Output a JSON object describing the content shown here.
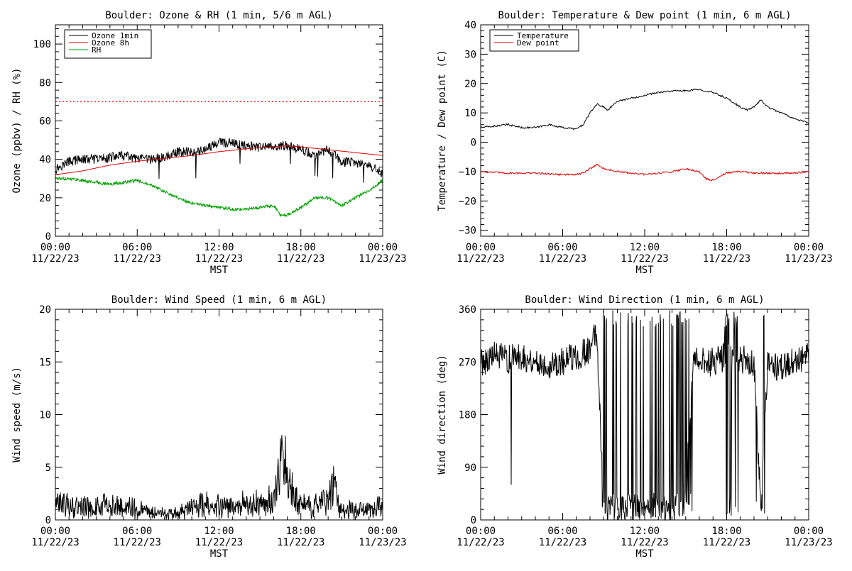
{
  "chart_data": [
    {
      "type": "line",
      "title": "Boulder: Ozone & RH (1 min, 5/6 m AGL)",
      "xlabel": "MST",
      "ylabel": "Ozone (ppbv) / RH (%)",
      "x_ticks": [
        {
          "time": "00:00",
          "date": "11/22/23"
        },
        {
          "time": "06:00",
          "date": "11/22/23"
        },
        {
          "time": "12:00",
          "date": "11/22/23"
        },
        {
          "time": "18:00",
          "date": "11/22/23"
        },
        {
          "time": "00:00",
          "date": "11/23/23"
        }
      ],
      "xlim_hours": [
        0,
        24
      ],
      "ylim": [
        0,
        110
      ],
      "y_ticks": [
        "0",
        "20",
        "40",
        "60",
        "80",
        "100"
      ],
      "y_tick_values": [
        0,
        20,
        40,
        60,
        80,
        100
      ],
      "legend": [
        "Ozone 1min",
        "Ozone 8h",
        "RH"
      ],
      "legend_position": "top-left",
      "reference_line": {
        "value": 70,
        "color": "#ff0000",
        "style": "dotted"
      },
      "series": [
        {
          "name": "Ozone 1min",
          "color": "#000000",
          "noisy": true,
          "hours": [
            0,
            1,
            2,
            3,
            4,
            5,
            6,
            7,
            8,
            9,
            10,
            11,
            12,
            13,
            14,
            15,
            16,
            17,
            18,
            19,
            20,
            21,
            22,
            23,
            24
          ],
          "values": [
            35,
            39,
            40,
            40,
            41,
            42,
            40,
            40,
            41,
            44,
            44,
            45,
            49,
            48,
            47,
            46,
            47,
            47,
            45,
            42,
            45,
            39,
            38,
            37,
            32
          ]
        },
        {
          "name": "Ozone 8h",
          "color": "#e00000",
          "noisy": false,
          "hours": [
            0,
            2,
            4,
            6,
            8,
            10,
            12,
            14,
            16,
            17,
            18,
            20,
            22,
            24
          ],
          "values": [
            32,
            34,
            37,
            39,
            40.5,
            42,
            44,
            45.5,
            46.5,
            47,
            46.5,
            45,
            43.5,
            42
          ]
        },
        {
          "name": "RH",
          "color": "#00a000",
          "noisy": true,
          "hours": [
            0,
            1,
            2,
            3,
            4,
            5,
            6,
            7,
            8,
            9,
            10,
            11,
            12,
            13,
            14,
            15,
            16,
            16.5,
            17,
            18,
            19,
            20,
            21,
            22,
            23,
            24
          ],
          "values": [
            30,
            30,
            29,
            28,
            27,
            28,
            29,
            27,
            23,
            20,
            17,
            16,
            15,
            14,
            14,
            15,
            16,
            11,
            11,
            15,
            20,
            20,
            16,
            20,
            24,
            29
          ]
        }
      ]
    },
    {
      "type": "line",
      "title": "Boulder: Temperature & Dew point (1 min, 6 m AGL)",
      "xlabel": "MST",
      "ylabel": "Temperature / Dew point (C)",
      "x_ticks": [
        {
          "time": "00:00",
          "date": "11/22/23"
        },
        {
          "time": "06:00",
          "date": "11/22/23"
        },
        {
          "time": "12:00",
          "date": "11/22/23"
        },
        {
          "time": "18:00",
          "date": "11/22/23"
        },
        {
          "time": "00:00",
          "date": "11/23/23"
        }
      ],
      "xlim_hours": [
        0,
        24
      ],
      "ylim": [
        -32,
        40
      ],
      "y_ticks": [
        "−30",
        "−20",
        "−10",
        "0",
        "10",
        "20",
        "30",
        "40"
      ],
      "y_tick_values": [
        -30,
        -20,
        -10,
        0,
        10,
        20,
        30,
        40
      ],
      "legend": [
        "Temperature",
        "Dew point"
      ],
      "legend_position": "top-left",
      "series": [
        {
          "name": "Temperature",
          "color": "#000000",
          "noisy": false,
          "hours": [
            0,
            1,
            2,
            3,
            4,
            5,
            6,
            7,
            7.5,
            8,
            8.5,
            9,
            9.3,
            10,
            11,
            12,
            13,
            14,
            15,
            16,
            17,
            18,
            19,
            19.5,
            20,
            20.5,
            21,
            22,
            23,
            24
          ],
          "values": [
            5,
            5.5,
            6,
            5,
            5,
            6,
            5,
            4.5,
            6,
            10,
            13,
            12,
            11,
            14,
            15,
            16,
            17,
            17.5,
            17.5,
            18,
            17,
            15,
            12,
            11,
            12,
            14.5,
            12,
            10,
            8,
            6.5
          ]
        },
        {
          "name": "Dew point",
          "color": "#e00000",
          "noisy": false,
          "hours": [
            0,
            2,
            4,
            6,
            7,
            7.5,
            8,
            8.5,
            9,
            10,
            11,
            12,
            13,
            14,
            15,
            16,
            16.5,
            17,
            17.5,
            18,
            19,
            20,
            21,
            22,
            23,
            24
          ],
          "values": [
            -10,
            -10.5,
            -10.5,
            -11,
            -11,
            -10.5,
            -9,
            -7.5,
            -9,
            -10,
            -10.5,
            -11,
            -10.5,
            -10,
            -9,
            -10,
            -12.5,
            -13,
            -11.5,
            -10.5,
            -10,
            -10.5,
            -10.5,
            -10.5,
            -10.5,
            -10
          ]
        }
      ]
    },
    {
      "type": "line",
      "title": "Boulder: Wind Speed (1 min, 6 m AGL)",
      "xlabel": "MST",
      "ylabel": "Wind speed (m/s)",
      "x_ticks": [
        {
          "time": "00:00",
          "date": "11/22/23"
        },
        {
          "time": "06:00",
          "date": "11/22/23"
        },
        {
          "time": "12:00",
          "date": "11/22/23"
        },
        {
          "time": "18:00",
          "date": "11/22/23"
        },
        {
          "time": "00:00",
          "date": "11/23/23"
        }
      ],
      "xlim_hours": [
        0,
        24
      ],
      "ylim": [
        0,
        20
      ],
      "y_ticks": [
        "0",
        "5",
        "10",
        "15",
        "20"
      ],
      "y_tick_values": [
        0,
        5,
        10,
        15,
        20
      ],
      "series": [
        {
          "name": "",
          "color": "#000000",
          "noisy": true,
          "hours": [
            0,
            1,
            2,
            3,
            4,
            5,
            6,
            7,
            8,
            9,
            10,
            11,
            12,
            13,
            14,
            15,
            16,
            16.5,
            17,
            17.5,
            18,
            19,
            20,
            20.5,
            21,
            22,
            23,
            24
          ],
          "values": [
            1.5,
            1.5,
            1.2,
            1.2,
            1.5,
            1.2,
            1.2,
            0.8,
            0.5,
            0.6,
            1.2,
            1.5,
            1.5,
            1.2,
            1.5,
            1.5,
            2,
            5,
            5,
            2,
            1.5,
            1.2,
            2,
            3.5,
            1,
            1,
            1.2,
            1.5
          ]
        }
      ]
    },
    {
      "type": "line",
      "title": "Boulder: Wind Direction (1 min, 6 m AGL)",
      "xlabel": "MST",
      "ylabel": "Wind direction (deg)",
      "x_ticks": [
        {
          "time": "00:00",
          "date": "11/22/23"
        },
        {
          "time": "06:00",
          "date": "11/22/23"
        },
        {
          "time": "12:00",
          "date": "11/22/23"
        },
        {
          "time": "18:00",
          "date": "11/22/23"
        },
        {
          "time": "00:00",
          "date": "11/23/23"
        }
      ],
      "xlim_hours": [
        0,
        24
      ],
      "ylim": [
        0,
        360
      ],
      "y_ticks": [
        "0",
        "90",
        "180",
        "270",
        "360"
      ],
      "y_tick_values": [
        0,
        90,
        180,
        270,
        360
      ],
      "series": [
        {
          "name": "",
          "color": "#000000",
          "noisy": true,
          "hours": [
            0,
            1,
            2,
            3,
            4,
            5,
            6,
            7,
            8,
            8.2,
            8.5,
            9,
            10,
            11,
            12,
            13,
            14,
            15,
            15.5,
            16,
            17,
            17.5,
            18,
            18.5,
            19,
            20,
            20.5,
            21,
            22,
            23,
            24
          ],
          "values": [
            270,
            280,
            275,
            280,
            270,
            265,
            270,
            280,
            290,
            310,
            320,
            20,
            15,
            20,
            15,
            25,
            20,
            30,
            270,
            270,
            270,
            275,
            280,
            270,
            275,
            270,
            20,
            270,
            260,
            275,
            280
          ]
        }
      ]
    }
  ]
}
